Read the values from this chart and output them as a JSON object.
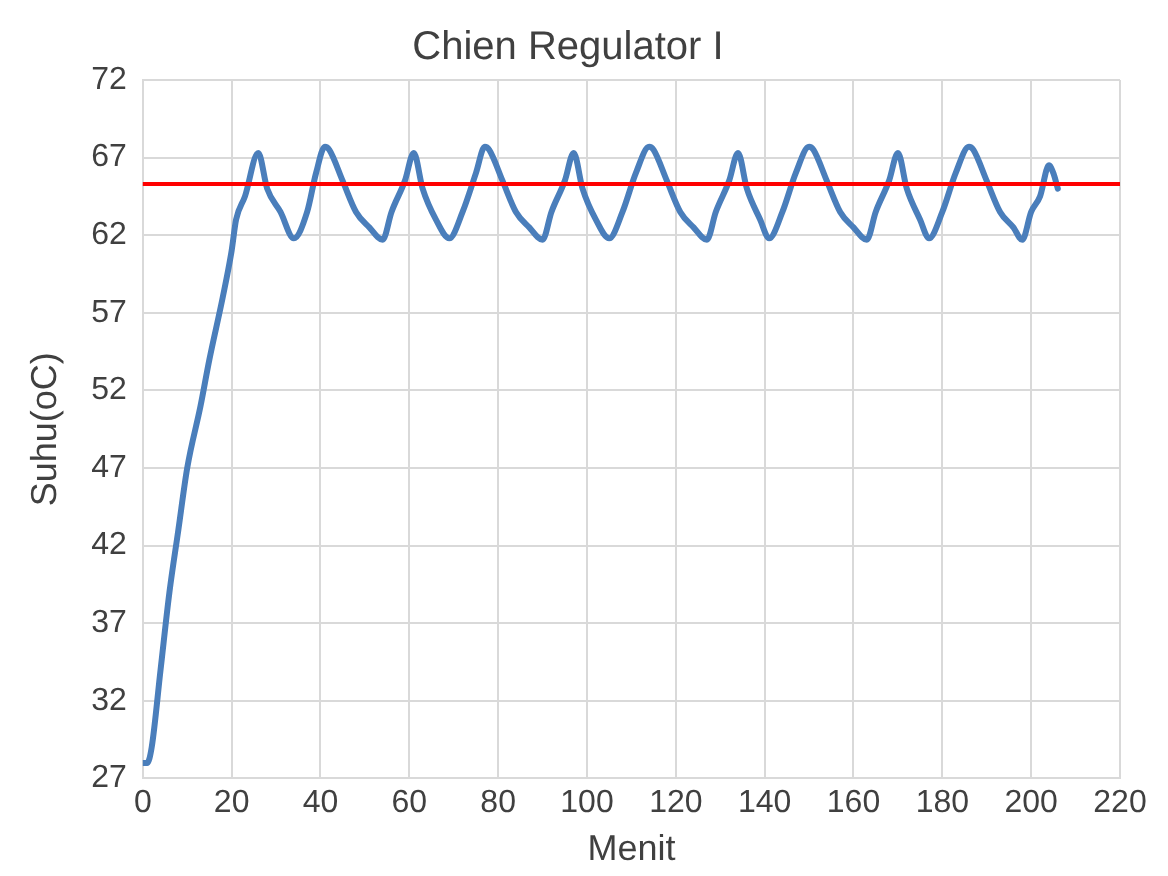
{
  "chart_data": {
    "type": "line",
    "title": "Chien Regulator I",
    "xlabel": "Menit",
    "ylabel": "Suhu(oC)",
    "xlim": [
      0,
      220
    ],
    "xticks": [
      0,
      20,
      40,
      60,
      80,
      100,
      120,
      140,
      160,
      180,
      200,
      220
    ],
    "ylim": [
      27,
      72
    ],
    "yticks": [
      27,
      32,
      37,
      42,
      47,
      52,
      57,
      62,
      67,
      72
    ],
    "grid": true,
    "legend": false,
    "marker": "none",
    "line_style": "solid",
    "series": [
      {
        "color": "#4a7ebb",
        "x": [
          0,
          1,
          2,
          4,
          6,
          8,
          10,
          13,
          15,
          18,
          20,
          21,
          23,
          26,
          28,
          31,
          34,
          37,
          39,
          41,
          42,
          45,
          48,
          51,
          54,
          56,
          59,
          61,
          63,
          66,
          69,
          72,
          75,
          77,
          78,
          81,
          84,
          87,
          90,
          92,
          95,
          97,
          99,
          102,
          105,
          108,
          111,
          114,
          115,
          118,
          121,
          124,
          127,
          129,
          132,
          134,
          136,
          139,
          141,
          144,
          147,
          150,
          151,
          154,
          157,
          160,
          163,
          165,
          168,
          170,
          172,
          175,
          177,
          180,
          183,
          186,
          187,
          190,
          193,
          196,
          198,
          200,
          202,
          204,
          205,
          206
        ],
        "values": [
          28,
          28,
          29,
          34,
          39,
          43,
          47,
          51,
          54,
          58,
          61,
          63,
          64.5,
          67.3,
          65,
          63.5,
          61.8,
          63.5,
          66,
          67.7,
          67.5,
          65.5,
          63.5,
          62.5,
          61.7,
          63.5,
          65.5,
          67.3,
          65,
          63,
          61.8,
          63.5,
          66,
          67.7,
          67.5,
          65.5,
          63.5,
          62.5,
          61.7,
          63.5,
          65.5,
          67.3,
          65,
          63,
          61.8,
          63.5,
          66,
          67.7,
          67.5,
          65.5,
          63.5,
          62.5,
          61.7,
          63.5,
          65.5,
          67.3,
          65,
          63,
          61.8,
          63.5,
          66,
          67.7,
          67.5,
          65.5,
          63.5,
          62.5,
          61.7,
          63.5,
          65.5,
          67.3,
          65,
          63,
          61.8,
          63.5,
          66,
          67.7,
          67.5,
          65.5,
          63.5,
          62.5,
          61.7,
          63.5,
          64.5,
          66.5,
          66,
          65
        ]
      }
    ],
    "ref_lines": [
      {
        "axis": "y",
        "value": 65.3,
        "color": "#ff0000",
        "line_style": "solid"
      }
    ]
  }
}
